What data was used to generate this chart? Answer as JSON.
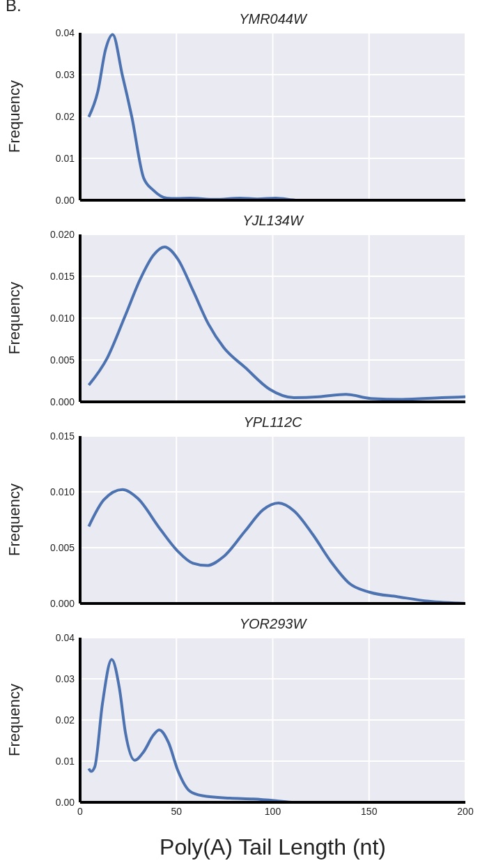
{
  "chart_data": [
    {
      "type": "line",
      "title": "YMR044W",
      "ylabel": "Frequency",
      "annotations": [
        "B."
      ],
      "tick_labels": "y",
      "grid": true,
      "xlim": [
        0,
        200
      ],
      "xticks": [
        0,
        50,
        100,
        150,
        200
      ],
      "ylim": [
        0,
        0.04
      ],
      "yticks": [
        {
          "value": 0,
          "label": "0.00"
        },
        {
          "value": 0.01,
          "label": "0.01"
        },
        {
          "value": 0.02,
          "label": "0.02"
        },
        {
          "value": 0.03,
          "label": "0.03"
        },
        {
          "value": 0.04,
          "label": "0.04"
        }
      ],
      "x": [
        4.5,
        9.2,
        13.2,
        16.9,
        22,
        24.4,
        26.8,
        33,
        38,
        45,
        50,
        57,
        70,
        83,
        92,
        101.6,
        113,
        150,
        200
      ],
      "series": [
        {
          "color": "#4c72b0",
          "values": [
            0.0199,
            0.026,
            0.036,
            0.0396,
            0.0297,
            0.025,
            0.02,
            0.0053,
            0.0024,
            0.0005,
            0.0004,
            0.0005,
            0.0002,
            0.0005,
            0.0003,
            0.0005,
            0,
            0,
            0
          ]
        }
      ]
    },
    {
      "type": "line",
      "title": "YJL134W",
      "ylabel": "Frequency",
      "tick_labels": "y",
      "grid": true,
      "xlim": [
        0,
        200
      ],
      "xticks": [
        0,
        50,
        100,
        150,
        200
      ],
      "ylim": [
        0,
        0.02
      ],
      "yticks": [
        {
          "value": 0,
          "label": "0.000"
        },
        {
          "value": 0.005,
          "label": "0.005"
        },
        {
          "value": 0.01,
          "label": "0.010"
        },
        {
          "value": 0.015,
          "label": "0.015"
        },
        {
          "value": 0.02,
          "label": "0.020"
        }
      ],
      "x": [
        4.5,
        14,
        23.6,
        31.5,
        38,
        43.8,
        50.6,
        58.6,
        66.6,
        74.5,
        85.7,
        98.4,
        111,
        124,
        138,
        151,
        167,
        187.6,
        200
      ],
      "series": [
        {
          "color": "#4c72b0",
          "values": [
            0.002,
            0.0052,
            0.0104,
            0.0148,
            0.0175,
            0.0185,
            0.0171,
            0.0133,
            0.0093,
            0.0065,
            0.0041,
            0.0015,
            0.0005,
            0.0006,
            0.0009,
            0.0004,
            0.0003,
            0.0005,
            0.0006
          ]
        }
      ]
    },
    {
      "type": "line",
      "title": "YPL112C",
      "ylabel": "Frequency",
      "tick_labels": "y",
      "grid": true,
      "xlim": [
        0,
        200
      ],
      "xticks": [
        0,
        50,
        100,
        150,
        200
      ],
      "ylim": [
        0,
        0.015
      ],
      "yticks": [
        {
          "value": 0,
          "label": "0.000"
        },
        {
          "value": 0.005,
          "label": "0.005"
        },
        {
          "value": 0.01,
          "label": "0.010"
        },
        {
          "value": 0.015,
          "label": "0.015"
        }
      ],
      "x": [
        4.5,
        12.4,
        22,
        30,
        41,
        50.6,
        58.6,
        65.8,
        74.5,
        85.7,
        95,
        103,
        111,
        120.7,
        130,
        139.8,
        150.5,
        165,
        181,
        200
      ],
      "series": [
        {
          "color": "#4c72b0",
          "values": [
            0.0069,
            0.0093,
            0.0102,
            0.0094,
            0.0068,
            0.0047,
            0.0036,
            0.0034,
            0.0042,
            0.0065,
            0.0084,
            0.009,
            0.0083,
            0.0062,
            0.0038,
            0.0018,
            0.001,
            0.0006,
            0.0002,
            0
          ]
        }
      ]
    },
    {
      "type": "line",
      "title": "YOR293W",
      "ylabel": "Frequency",
      "xlabel": "Poly(A) Tail Length (nt)",
      "grid": true,
      "xlim": [
        0,
        200
      ],
      "xticks": [
        0,
        50,
        100,
        150,
        200
      ],
      "ylim": [
        0,
        0.04
      ],
      "yticks": [
        {
          "value": 0,
          "label": "0.00"
        },
        {
          "value": 0.01,
          "label": "0.01"
        },
        {
          "value": 0.02,
          "label": "0.02"
        },
        {
          "value": 0.03,
          "label": "0.03"
        },
        {
          "value": 0.04,
          "label": "0.04"
        }
      ],
      "x": [
        4.5,
        5.7,
        7.6,
        11.6,
        16.4,
        20.4,
        23.6,
        28.3,
        33,
        38,
        41,
        45.9,
        50.6,
        57,
        63.4,
        77.7,
        90,
        101.6,
        111,
        200
      ],
      "series": [
        {
          "color": "#4c72b0",
          "values": [
            0.0082,
            0.0075,
            0.0086,
            0.024,
            0.0347,
            0.0277,
            0.0167,
            0.0102,
            0.0123,
            0.0163,
            0.0176,
            0.0145,
            0.0079,
            0.0027,
            0.0016,
            0.001,
            0.0008,
            0.0004,
            0,
            0
          ]
        }
      ]
    }
  ]
}
